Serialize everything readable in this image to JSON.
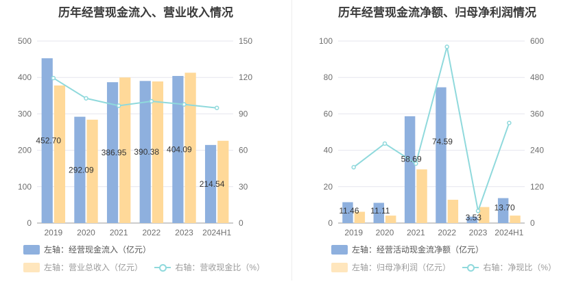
{
  "colors": {
    "bar1": "#8eb0de",
    "bar2": "#ffd999",
    "line": "#8fd9dc",
    "grid": "#e6e6ee",
    "axis": "#999999"
  },
  "chart_data": [
    {
      "type": "bar",
      "title": "历年经营现金流入、营业收入情况",
      "categories": [
        "2019",
        "2020",
        "2021",
        "2022",
        "2023",
        "2024H1"
      ],
      "series": [
        {
          "name": "左轴：经营现金流入（亿元）",
          "axis": "left",
          "values": [
            452.7,
            292.09,
            386.95,
            390.38,
            404.09,
            214.54
          ],
          "labels": [
            "452.70",
            "292.09",
            "386.95",
            "390.38",
            "404.09",
            "214.54"
          ]
        },
        {
          "name": "左轴：营业总收入（亿元）",
          "axis": "left",
          "values": [
            378,
            284,
            400,
            389,
            413,
            226
          ]
        },
        {
          "name": "右轴：营收现金比（%）",
          "axis": "right",
          "type": "line",
          "values": [
            119.5,
            102.8,
            96.7,
            100.4,
            97.8,
            94.9
          ]
        }
      ],
      "ylim_left": [
        0,
        500
      ],
      "yticks_left": [
        "0",
        "100",
        "200",
        "300",
        "400",
        "500"
      ],
      "ylim_right": [
        0,
        150
      ],
      "yticks_right": [
        "0",
        "30",
        "60",
        "90",
        "120",
        "150"
      ],
      "grid": true
    },
    {
      "type": "bar",
      "title": "历年经营现金流净额、归母净利润情况",
      "categories": [
        "2019",
        "2020",
        "2021",
        "2022",
        "2023",
        "2024H1"
      ],
      "series": [
        {
          "name": "左轴：经营活动现金流净额（亿元）",
          "axis": "left",
          "values": [
            11.46,
            11.11,
            58.69,
            74.59,
            3.53,
            13.7
          ],
          "labels": [
            "11.46",
            "11.11",
            "58.69",
            "74.59",
            "3.53",
            "13.70"
          ]
        },
        {
          "name": "左轴：归母净利润（亿元）",
          "axis": "left",
          "values": [
            6.2,
            4.1,
            29.5,
            12.8,
            8.8,
            4.1
          ]
        },
        {
          "name": "右轴：净现比（%）",
          "axis": "right",
          "type": "line",
          "values": [
            184,
            262,
            196,
            581,
            40,
            330
          ]
        }
      ],
      "ylim_left": [
        0,
        100
      ],
      "yticks_left": [
        "0",
        "20",
        "40",
        "60",
        "80",
        "100"
      ],
      "ylim_right": [
        0,
        600
      ],
      "yticks_right": [
        "0",
        "120",
        "240",
        "360",
        "480",
        "600"
      ],
      "grid": true
    }
  ]
}
